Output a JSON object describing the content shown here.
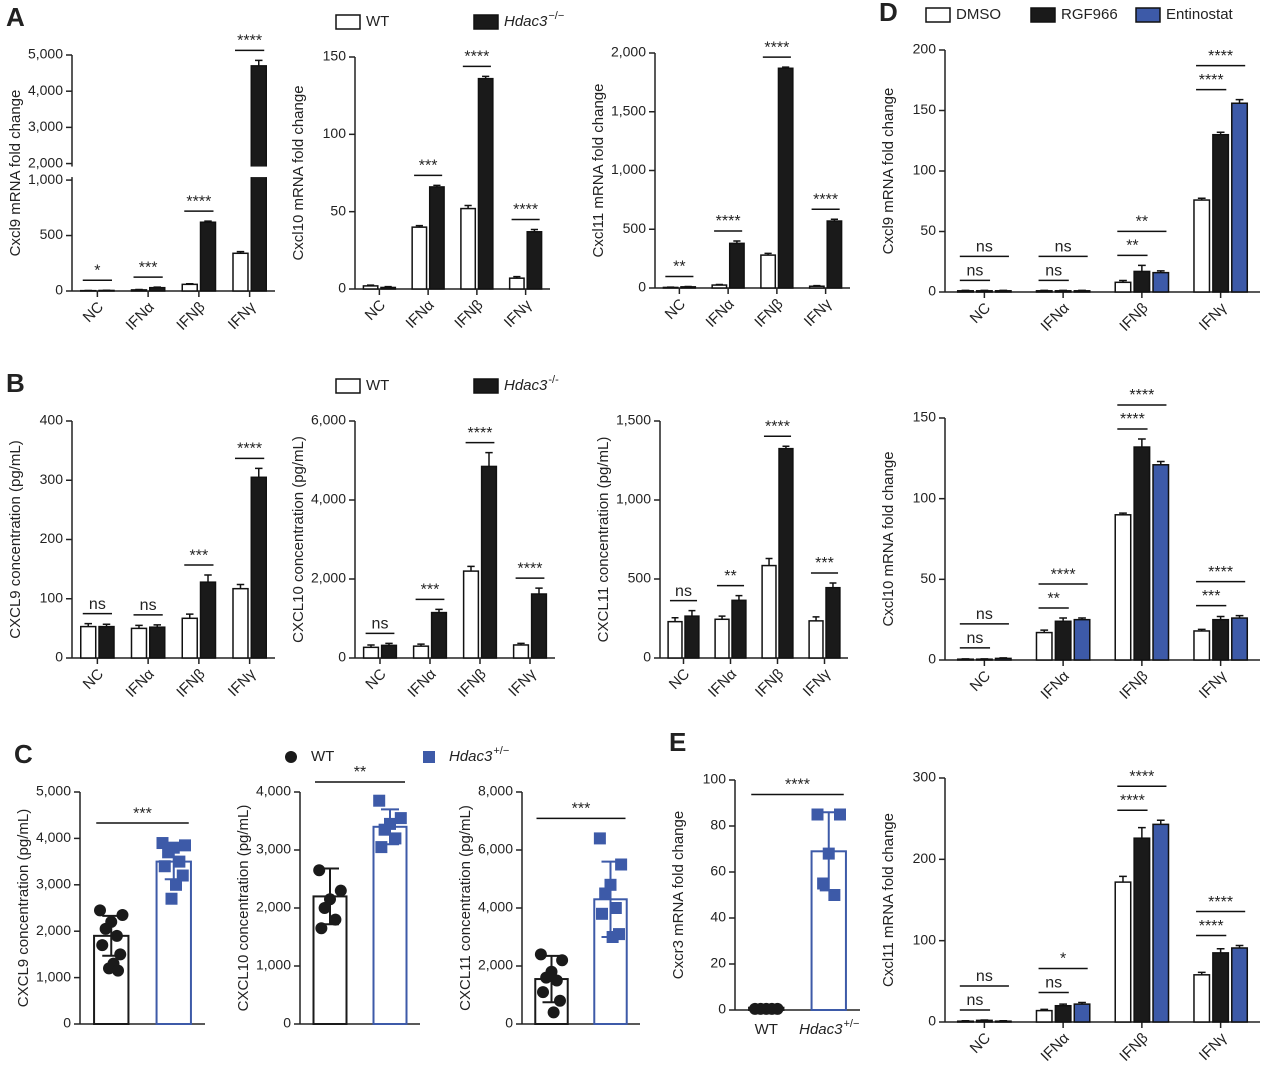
{
  "chart_data": [
    {
      "type": "bar",
      "panel": "A",
      "ylabel": "Cxcl9 mRNA fold change",
      "categories": [
        "NC",
        "IFNα",
        "IFNβ",
        "IFNγ"
      ],
      "ylim": [
        0,
        5000
      ],
      "ybreak": [
        1000,
        2000
      ],
      "yticks": [
        0,
        500,
        {
          "value": 1000,
          "label": "1,000"
        },
        {
          "value": 2000,
          "label": "2,000"
        },
        {
          "value": 3000,
          "label": "3,000"
        },
        {
          "value": 4000,
          "label": "4,000"
        },
        {
          "value": 5000,
          "label": "5,000"
        }
      ],
      "series": [
        {
          "color": "#ffffff",
          "values": [
            3,
            10,
            60,
            340
          ],
          "errors": [
            1,
            3,
            5,
            15
          ]
        },
        {
          "color": "#1a1a1a",
          "values": [
            5,
            30,
            620,
            4700
          ],
          "errors": [
            2,
            5,
            10,
            150
          ]
        }
      ],
      "annotations": [
        {
          "text": "*",
          "category": 0
        },
        {
          "text": "***",
          "category": 1
        },
        {
          "text": "****",
          "category": 2
        },
        {
          "text": "****",
          "category": 3
        }
      ]
    },
    {
      "type": "bar",
      "ylabel": "Cxcl10 mRNA fold change",
      "categories": [
        "NC",
        "IFNα",
        "IFNβ",
        "IFNγ"
      ],
      "legend": true,
      "ylim": [
        0,
        150
      ],
      "yticks": [
        0,
        50,
        100,
        150
      ],
      "series": [
        {
          "name": "WT",
          "color": "#ffffff",
          "values": [
            2,
            40,
            52,
            7
          ],
          "errors": [
            0.5,
            1,
            2,
            1
          ]
        },
        {
          "name": "Hdac3",
          "name_sup": "−/−",
          "color": "#1a1a1a",
          "values": [
            1,
            66,
            136,
            37
          ],
          "errors": [
            0.5,
            1,
            1.5,
            1.5
          ]
        }
      ],
      "annotations": [
        {
          "text": "***",
          "category": 1
        },
        {
          "text": "****",
          "category": 2
        },
        {
          "text": "****",
          "category": 3
        }
      ]
    },
    {
      "type": "bar",
      "ylabel": "Cxcl11 mRNA fold change",
      "categories": [
        "NC",
        "IFNα",
        "IFNβ",
        "IFNγ"
      ],
      "ylim": [
        0,
        2000
      ],
      "yticks": [
        0,
        500,
        {
          "value": 1000,
          "label": "1,000"
        },
        {
          "value": 1500,
          "label": "1,500"
        },
        {
          "value": 2000,
          "label": "2,000"
        }
      ],
      "series": [
        {
          "color": "#ffffff",
          "values": [
            5,
            25,
            280,
            15
          ],
          "errors": [
            2,
            5,
            15,
            5
          ]
        },
        {
          "color": "#1a1a1a",
          "values": [
            10,
            380,
            1870,
            570
          ],
          "errors": [
            3,
            20,
            10,
            15
          ]
        }
      ],
      "annotations": [
        {
          "text": "**",
          "category": 0
        },
        {
          "text": "****",
          "category": 1
        },
        {
          "text": "****",
          "category": 2
        },
        {
          "text": "****",
          "category": 3
        }
      ]
    },
    {
      "type": "bar",
      "panel": "B",
      "ylabel": "CXCL9 concentration (pg/mL)",
      "categories": [
        "NC",
        "IFNα",
        "IFNβ",
        "IFNγ"
      ],
      "ylim": [
        0,
        400
      ],
      "yticks": [
        0,
        100,
        200,
        300,
        400
      ],
      "series": [
        {
          "color": "#ffffff",
          "values": [
            53,
            50,
            67,
            117
          ],
          "errors": [
            5,
            5,
            7,
            7
          ]
        },
        {
          "color": "#1a1a1a",
          "values": [
            53,
            52,
            128,
            305
          ],
          "errors": [
            4,
            4,
            12,
            15
          ]
        }
      ],
      "annotations": [
        {
          "text": "ns",
          "category": 0
        },
        {
          "text": "ns",
          "category": 1
        },
        {
          "text": "***",
          "category": 2
        },
        {
          "text": "****",
          "category": 3
        }
      ]
    },
    {
      "type": "bar",
      "ylabel": "CXCL10 concentration (pg/mL)",
      "categories": [
        "NC",
        "IFNα",
        "IFNβ",
        "IFNγ"
      ],
      "legend": true,
      "ylim": [
        0,
        6000
      ],
      "yticks": [
        0,
        {
          "value": 2000,
          "label": "2,000"
        },
        {
          "value": 4000,
          "label": "4,000"
        },
        {
          "value": 6000,
          "label": "6,000"
        }
      ],
      "series": [
        {
          "name": "WT",
          "color": "#ffffff",
          "values": [
            270,
            300,
            2200,
            330
          ],
          "errors": [
            60,
            50,
            120,
            40
          ]
        },
        {
          "name": "Hdac3",
          "name_sup": "-/-",
          "color": "#1a1a1a",
          "values": [
            320,
            1150,
            4850,
            1620
          ],
          "errors": [
            50,
            80,
            350,
            150
          ]
        }
      ],
      "annotations": [
        {
          "text": "ns",
          "category": 0
        },
        {
          "text": "***",
          "category": 1
        },
        {
          "text": "****",
          "category": 2
        },
        {
          "text": "****",
          "category": 3
        }
      ]
    },
    {
      "type": "bar",
      "ylabel": "CXCL11 concentration (pg/mL)",
      "categories": [
        "NC",
        "IFNα",
        "IFNβ",
        "IFNγ"
      ],
      "ylim": [
        0,
        1500
      ],
      "yticks": [
        0,
        500,
        {
          "value": 1000,
          "label": "1,000"
        },
        {
          "value": 1500,
          "label": "1,500"
        }
      ],
      "series": [
        {
          "color": "#ffffff",
          "values": [
            230,
            245,
            585,
            235
          ],
          "errors": [
            25,
            20,
            45,
            25
          ]
        },
        {
          "color": "#1a1a1a",
          "values": [
            265,
            365,
            1325,
            445
          ],
          "errors": [
            35,
            30,
            15,
            30
          ]
        }
      ],
      "annotations": [
        {
          "text": "ns",
          "category": 0
        },
        {
          "text": "**",
          "category": 1
        },
        {
          "text": "****",
          "category": 2
        },
        {
          "text": "***",
          "category": 3
        }
      ]
    },
    {
      "type": "dot",
      "panel": "C",
      "ylabel": "CXCL9 concentration (pg/mL)",
      "ylim": [
        0,
        5000
      ],
      "yticks": [
        0,
        {
          "value": 1000,
          "label": "1,000"
        },
        {
          "value": 2000,
          "label": "2,000"
        },
        {
          "value": 3000,
          "label": "3,000"
        },
        {
          "value": 4000,
          "label": "4,000"
        },
        {
          "value": 5000,
          "label": "5,000"
        }
      ],
      "series": [
        {
          "color": "#1a1a1a",
          "marker": "circle",
          "points": [
            2450,
            2350,
            2200,
            2050,
            1900,
            1700,
            1500,
            1300,
            1200,
            1150
          ],
          "mean": 1900,
          "sd": 430
        },
        {
          "color": "#3d5aa8",
          "marker": "square",
          "points": [
            3900,
            3850,
            3800,
            3700,
            3500,
            3400,
            3200,
            3000,
            2700
          ],
          "mean": 3500,
          "sd": 380
        }
      ],
      "annotations": [
        {
          "text": "***"
        }
      ]
    },
    {
      "type": "dot",
      "ylabel": "CXCL10 concentration (pg/mL)",
      "legend": true,
      "ylim": [
        0,
        4000
      ],
      "yticks": [
        0,
        {
          "value": 1000,
          "label": "1,000"
        },
        {
          "value": 2000,
          "label": "2,000"
        },
        {
          "value": 3000,
          "label": "3,000"
        },
        {
          "value": 4000,
          "label": "4,000"
        }
      ],
      "series": [
        {
          "name": "WT",
          "color": "#1a1a1a",
          "marker": "circle",
          "points": [
            2650,
            2300,
            2150,
            2000,
            1800,
            1650
          ],
          "mean": 2200,
          "sd": 480
        },
        {
          "name": "Hdac3",
          "name_sup": "+/−",
          "color": "#3d5aa8",
          "marker": "square",
          "points": [
            3850,
            3550,
            3450,
            3350,
            3200,
            3050
          ],
          "mean": 3400,
          "sd": 300
        }
      ],
      "annotations": [
        {
          "text": "**"
        }
      ]
    },
    {
      "type": "dot",
      "ylabel": "CXCL11 concentration (pg/mL)",
      "ylim": [
        0,
        8000
      ],
      "yticks": [
        0,
        {
          "value": 2000,
          "label": "2,000"
        },
        {
          "value": 4000,
          "label": "4,000"
        },
        {
          "value": 6000,
          "label": "6,000"
        },
        {
          "value": 8000,
          "label": "8,000"
        }
      ],
      "series": [
        {
          "color": "#1a1a1a",
          "marker": "circle",
          "points": [
            2400,
            2200,
            1800,
            1600,
            1500,
            1100,
            800,
            400
          ],
          "mean": 1550,
          "sd": 800
        },
        {
          "color": "#3d5aa8",
          "marker": "square",
          "points": [
            6400,
            5500,
            4800,
            4500,
            4000,
            3800,
            3100,
            3000
          ],
          "mean": 4300,
          "sd": 1300
        }
      ],
      "annotations": [
        {
          "text": "***"
        }
      ]
    },
    {
      "type": "dot",
      "panel": "E",
      "ylabel": "Cxcr3 mRNA fold change",
      "ylim": [
        0,
        100
      ],
      "yticks": [
        0,
        20,
        40,
        60,
        80,
        100
      ],
      "series": [
        {
          "name": "WT",
          "color": "#1a1a1a",
          "marker": "circle",
          "points": [
            0.5,
            0.5,
            0.5,
            0.5,
            0.5
          ],
          "mean": 1,
          "sd": 0.3
        },
        {
          "name": "Hdac3",
          "name_sup": "+/−",
          "color": "#3d5aa8",
          "marker": "square",
          "points": [
            85,
            85,
            68,
            55,
            50
          ],
          "mean": 69,
          "sd": 17
        }
      ],
      "annotations": [
        {
          "text": "****"
        }
      ]
    },
    {
      "type": "bar",
      "panel": "D",
      "ylabel": "Cxcl9 mRNA fold change",
      "categories": [
        "NC",
        "IFNα",
        "IFNβ",
        "IFNγ"
      ],
      "legend": true,
      "ylim": [
        0,
        200
      ],
      "yticks": [
        0,
        50,
        100,
        150,
        200
      ],
      "series": [
        {
          "name": "DMSO",
          "color": "#ffffff",
          "values": [
            1,
            1,
            8,
            76
          ],
          "errors": [
            0.3,
            0.3,
            1.5,
            1.5
          ]
        },
        {
          "name": "RGF966",
          "color": "#1a1a1a",
          "values": [
            1,
            1,
            17,
            130
          ],
          "errors": [
            0.3,
            0.3,
            5,
            2
          ]
        },
        {
          "name": "Entinostat",
          "color": "#3d5aa8",
          "values": [
            1,
            1,
            16,
            156
          ],
          "errors": [
            0.3,
            0.3,
            1.5,
            3
          ]
        }
      ],
      "annotations": [
        {
          "text": "ns",
          "category": 0,
          "from": 0,
          "to": 1
        },
        {
          "text": "ns",
          "category": 0,
          "from": 0,
          "to": 2
        },
        {
          "text": "ns",
          "category": 1,
          "from": 0,
          "to": 1
        },
        {
          "text": "ns",
          "category": 1,
          "from": 0,
          "to": 2
        },
        {
          "text": "**",
          "category": 2,
          "from": 0,
          "to": 1
        },
        {
          "text": "**",
          "category": 2,
          "from": 0,
          "to": 2
        },
        {
          "text": "****",
          "category": 3,
          "from": 0,
          "to": 1
        },
        {
          "text": "****",
          "category": 3,
          "from": 0,
          "to": 2
        }
      ]
    },
    {
      "type": "bar",
      "ylabel": "Cxcl10 mRNA fold change",
      "categories": [
        "NC",
        "IFNα",
        "IFNβ",
        "IFNγ"
      ],
      "ylim": [
        0,
        150
      ],
      "yticks": [
        0,
        50,
        100,
        150
      ],
      "series": [
        {
          "color": "#ffffff",
          "values": [
            0.5,
            17,
            90,
            18
          ],
          "errors": [
            0.2,
            1.5,
            1,
            1
          ]
        },
        {
          "color": "#1a1a1a",
          "values": [
            0.5,
            24,
            132,
            25
          ],
          "errors": [
            0.2,
            2,
            5,
            2
          ]
        },
        {
          "color": "#3d5aa8",
          "values": [
            1,
            25,
            121,
            26
          ],
          "errors": [
            0.3,
            1,
            2,
            1.5
          ]
        }
      ],
      "annotations": [
        {
          "text": "ns",
          "category": 0,
          "from": 0,
          "to": 1
        },
        {
          "text": "ns",
          "category": 0,
          "from": 0,
          "to": 2
        },
        {
          "text": "**",
          "category": 1,
          "from": 0,
          "to": 1
        },
        {
          "text": "****",
          "category": 1,
          "from": 0,
          "to": 2
        },
        {
          "text": "****",
          "category": 2,
          "from": 0,
          "to": 1
        },
        {
          "text": "****",
          "category": 2,
          "from": 0,
          "to": 2
        },
        {
          "text": "***",
          "category": 3,
          "from": 0,
          "to": 1
        },
        {
          "text": "****",
          "category": 3,
          "from": 0,
          "to": 2
        }
      ]
    },
    {
      "type": "bar",
      "ylabel": "Cxcl11 mRNA fold change",
      "categories": [
        "NC",
        "IFNα",
        "IFNβ",
        "IFNγ"
      ],
      "ylim": [
        0,
        300
      ],
      "yticks": [
        0,
        100,
        200,
        300
      ],
      "series": [
        {
          "color": "#ffffff",
          "values": [
            1,
            14,
            172,
            58
          ],
          "errors": [
            0.5,
            1.5,
            7,
            3
          ]
        },
        {
          "color": "#1a1a1a",
          "values": [
            2,
            20,
            226,
            85
          ],
          "errors": [
            0.5,
            2,
            13,
            5
          ]
        },
        {
          "color": "#3d5aa8",
          "values": [
            1,
            22,
            243,
            91
          ],
          "errors": [
            0.5,
            2,
            5,
            3
          ]
        }
      ],
      "annotations": [
        {
          "text": "ns",
          "category": 0,
          "from": 0,
          "to": 1
        },
        {
          "text": "ns",
          "category": 0,
          "from": 0,
          "to": 2
        },
        {
          "text": "ns",
          "category": 1,
          "from": 0,
          "to": 1
        },
        {
          "text": "*",
          "category": 1,
          "from": 0,
          "to": 2
        },
        {
          "text": "****",
          "category": 2,
          "from": 0,
          "to": 1
        },
        {
          "text": "****",
          "category": 2,
          "from": 0,
          "to": 2
        },
        {
          "text": "****",
          "category": 3,
          "from": 0,
          "to": 1
        },
        {
          "text": "****",
          "category": 3,
          "from": 0,
          "to": 2
        }
      ]
    }
  ]
}
